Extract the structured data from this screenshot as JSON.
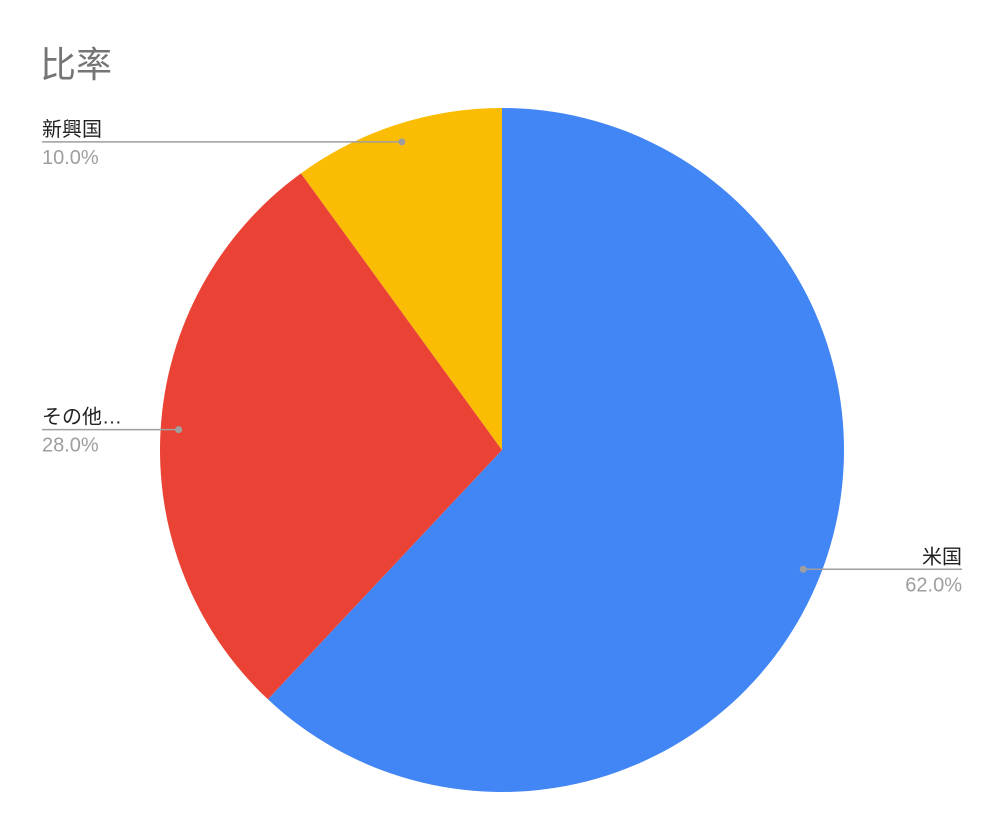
{
  "chart_data": {
    "type": "pie",
    "title": "比率",
    "start_angle": "top, clockwise",
    "slices": [
      {
        "label": "米国",
        "value": 62.0,
        "display": "62.0%",
        "color": "#4285F4"
      },
      {
        "label": "その他…",
        "value": 28.0,
        "display": "28.0%",
        "color": "#EA4335"
      },
      {
        "label": "新興国",
        "value": 10.0,
        "display": "10.0%",
        "color": "#FBBC04"
      }
    ],
    "legend": "none (leader-line labels)"
  }
}
